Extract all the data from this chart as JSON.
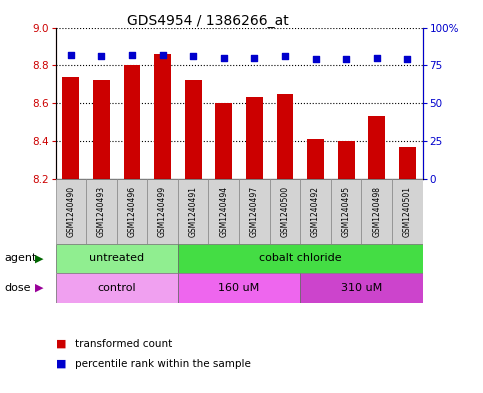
{
  "title": "GDS4954 / 1386266_at",
  "samples": [
    "GSM1240490",
    "GSM1240493",
    "GSM1240496",
    "GSM1240499",
    "GSM1240491",
    "GSM1240494",
    "GSM1240497",
    "GSM1240500",
    "GSM1240492",
    "GSM1240495",
    "GSM1240498",
    "GSM1240501"
  ],
  "transformed_count": [
    8.74,
    8.72,
    8.8,
    8.86,
    8.72,
    8.6,
    8.63,
    8.65,
    8.41,
    8.4,
    8.53,
    8.37
  ],
  "percentile_rank": [
    82,
    81,
    82,
    82,
    81,
    80,
    80,
    81,
    79,
    79,
    80,
    79
  ],
  "ylim_left": [
    8.2,
    9.0
  ],
  "ylim_right": [
    0,
    100
  ],
  "yticks_left": [
    8.2,
    8.4,
    8.6,
    8.8,
    9.0
  ],
  "yticks_right": [
    0,
    25,
    50,
    75,
    100
  ],
  "ytick_labels_right": [
    "0",
    "25",
    "50",
    "75",
    "100%"
  ],
  "bar_color": "#cc0000",
  "dot_color": "#0000cc",
  "agent_groups": [
    {
      "label": "untreated",
      "start": 0,
      "end": 4,
      "color": "#90ee90"
    },
    {
      "label": "cobalt chloride",
      "start": 4,
      "end": 12,
      "color": "#44dd44"
    }
  ],
  "dose_groups": [
    {
      "label": "control",
      "start": 0,
      "end": 4,
      "color": "#f0a0f0"
    },
    {
      "label": "160 uM",
      "start": 4,
      "end": 8,
      "color": "#ee66ee"
    },
    {
      "label": "310 uM",
      "start": 8,
      "end": 12,
      "color": "#cc44cc"
    }
  ],
  "legend_items": [
    {
      "label": "transformed count",
      "color": "#cc0000"
    },
    {
      "label": "percentile rank within the sample",
      "color": "#0000cc"
    }
  ],
  "tick_label_color_left": "#cc0000",
  "tick_label_color_right": "#0000cc",
  "agent_label": "agent",
  "dose_label": "dose"
}
